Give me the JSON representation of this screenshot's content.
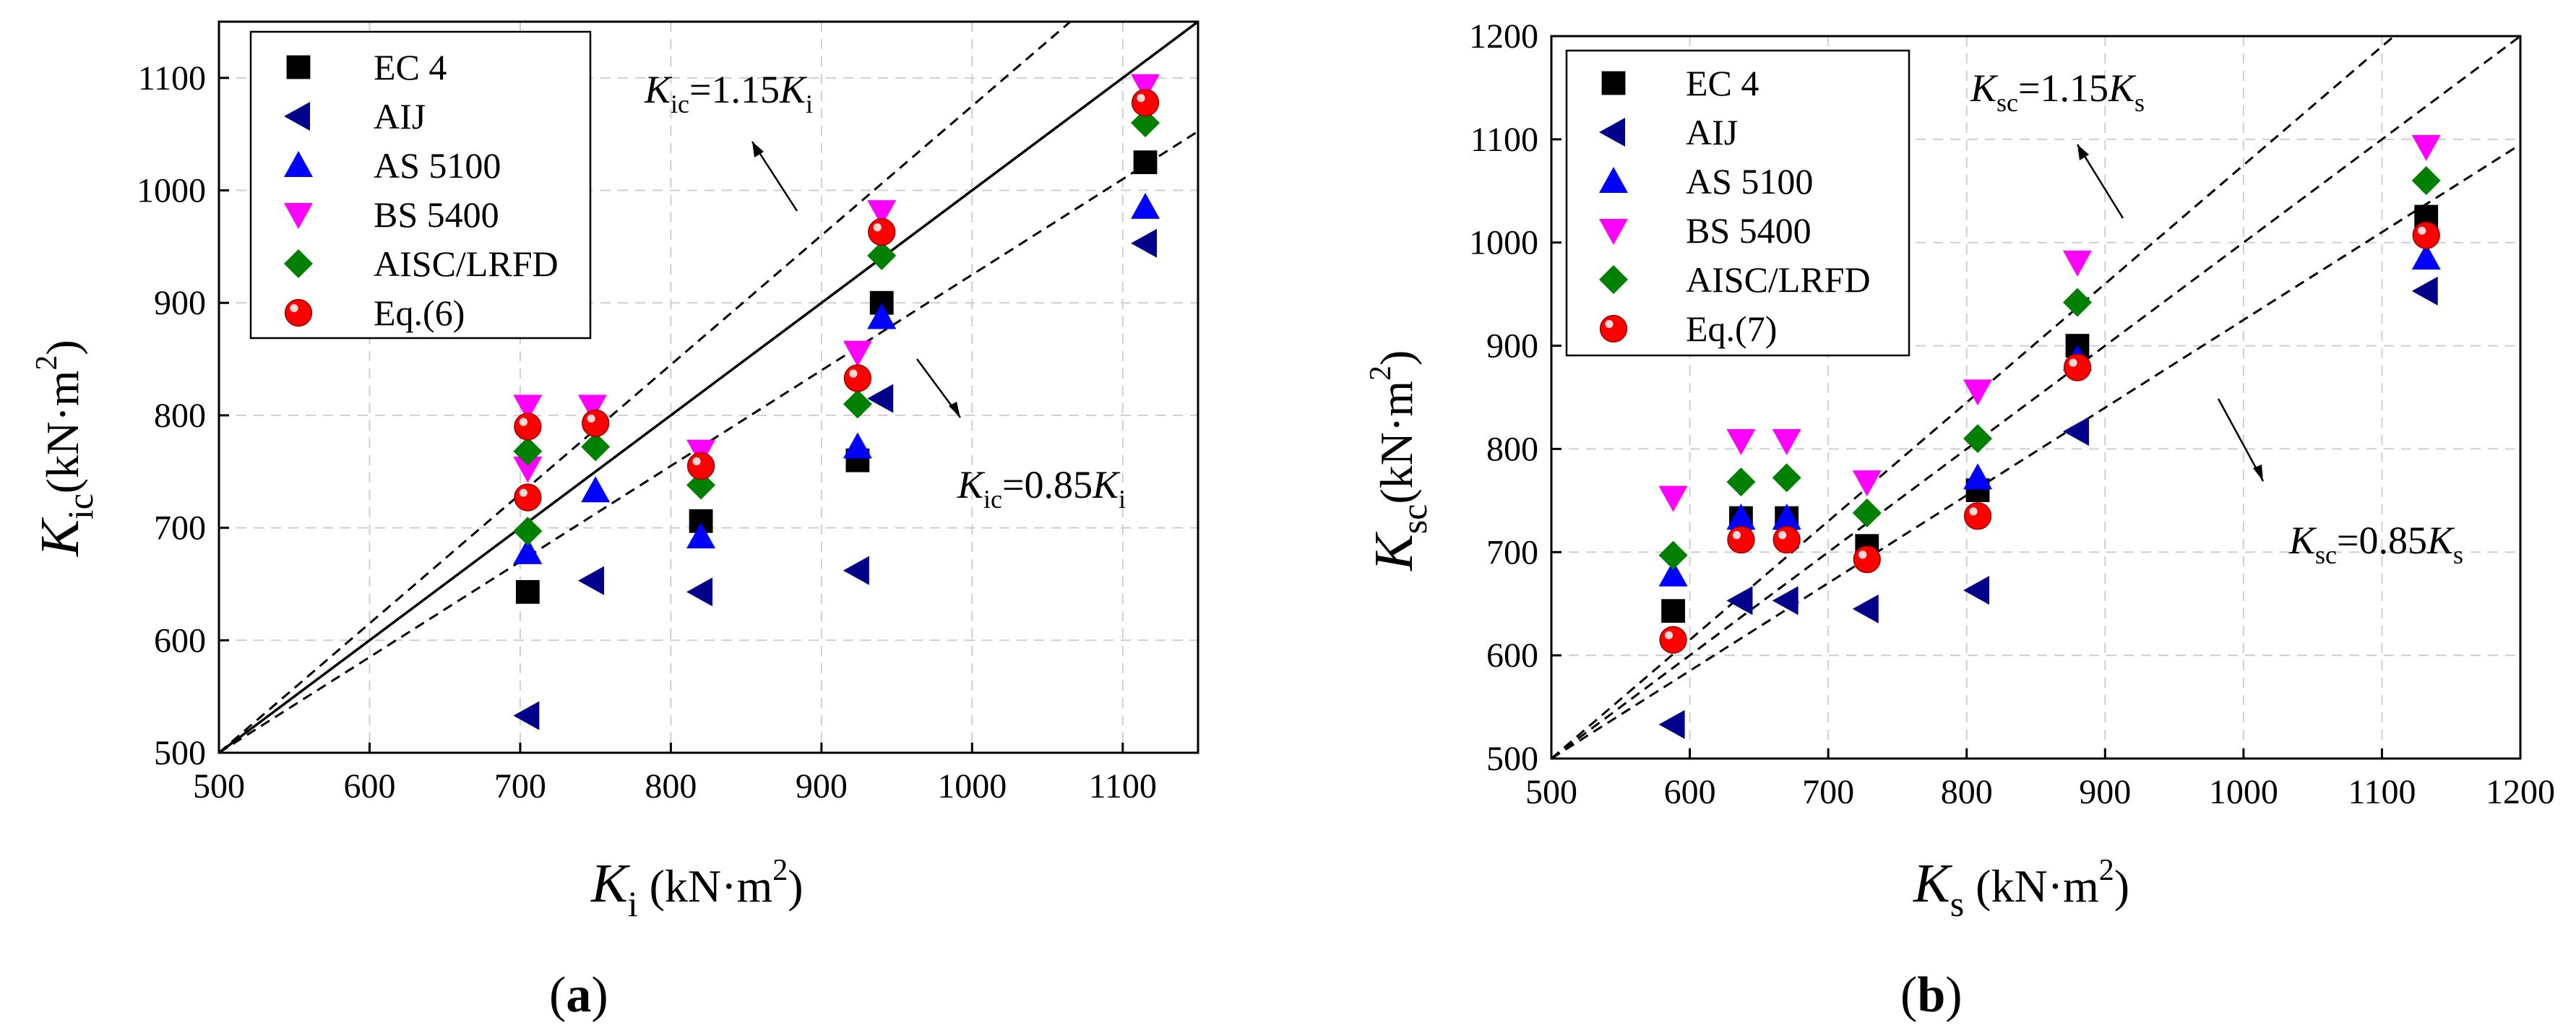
{
  "figure": {
    "panels": [
      {
        "label_parts": [
          "(",
          "a",
          ")"
        ]
      },
      {
        "label_parts": [
          "(",
          "b",
          ")"
        ]
      }
    ]
  },
  "chart_data": [
    {
      "type": "scatter",
      "panel": "a",
      "xlabel": {
        "main": "K",
        "sub": "i",
        "unit": " (kN·m",
        "sup": "2",
        "close": ")"
      },
      "ylabel": {
        "main": "K",
        "sub": "ic",
        "unit": "(kN·m",
        "sup": "2",
        "close": ")"
      },
      "xlim": [
        500,
        1150
      ],
      "ylim": [
        500,
        1150
      ],
      "xticks": [
        500,
        600,
        700,
        800,
        900,
        1000,
        1100
      ],
      "yticks": [
        500,
        600,
        700,
        800,
        900,
        1000,
        1100
      ],
      "grid": true,
      "legend_position": "top-left",
      "reference_lines": [
        {
          "name": "1:1",
          "slope": 1.0,
          "style": "solid"
        },
        {
          "name": "upper",
          "slope": 1.15,
          "style": "dashed"
        },
        {
          "name": "lower",
          "slope": 0.85,
          "style": "dashed"
        }
      ],
      "annotations": [
        {
          "main": "K",
          "sub": "ic",
          "rest": "=1.15",
          "main2": "K",
          "sub2": "i"
        },
        {
          "main": "K",
          "sub": "ic",
          "rest": "=0.85",
          "main2": "K",
          "sub2": "i"
        }
      ],
      "series": [
        {
          "name": "EC 4",
          "marker": "square",
          "color": "#000000",
          "x": [
            705,
            820,
            924,
            940,
            1115
          ],
          "y": [
            643,
            706,
            760,
            900,
            1025
          ]
        },
        {
          "name": "AIJ",
          "marker": "triangle-left",
          "color": "#00008B",
          "x": [
            705,
            748,
            820,
            924,
            940,
            1115
          ],
          "y": [
            533,
            653,
            643,
            662,
            815,
            953
          ]
        },
        {
          "name": "AS 5100",
          "marker": "triangle-up",
          "color": "#0000FF",
          "x": [
            705,
            750,
            820,
            924,
            940,
            1115
          ],
          "y": [
            678,
            733,
            692,
            772,
            887,
            985
          ]
        },
        {
          "name": "BS 5400",
          "marker": "triangle-down",
          "color": "#FF00FF",
          "x": [
            705,
            705,
            748,
            820,
            924,
            940,
            1115
          ],
          "y": [
            753,
            808,
            808,
            768,
            856,
            981,
            1093
          ]
        },
        {
          "name": "AISC/LRFD",
          "marker": "diamond",
          "color": "#008000",
          "x": [
            705,
            705,
            750,
            820,
            924,
            940,
            1115
          ],
          "y": [
            697,
            768,
            772,
            738,
            810,
            942,
            1060
          ]
        },
        {
          "name": "Eq.(6)",
          "marker": "circle",
          "color": "#FF0000",
          "x": [
            705,
            705,
            750,
            820,
            924,
            940,
            1115
          ],
          "y": [
            727,
            790,
            793,
            755,
            833,
            963,
            1078
          ]
        }
      ]
    },
    {
      "type": "scatter",
      "panel": "b",
      "xlabel": {
        "main": "K",
        "sub": "s",
        "unit": " (kN·m",
        "sup": "2",
        "close": ")"
      },
      "ylabel": {
        "main": "K",
        "sub": "sc",
        "unit": "(kN·m",
        "sup": "2",
        "close": ")"
      },
      "xlim": [
        500,
        1200
      ],
      "ylim": [
        500,
        1200
      ],
      "xticks": [
        500,
        600,
        700,
        800,
        900,
        1000,
        1100,
        1200
      ],
      "yticks": [
        500,
        600,
        700,
        800,
        900,
        1000,
        1100,
        1200
      ],
      "grid": true,
      "legend_position": "top-left",
      "reference_lines": [
        {
          "name": "1:1",
          "slope": 1.0,
          "style": "dashed"
        },
        {
          "name": "upper",
          "slope": 1.15,
          "style": "dashed"
        },
        {
          "name": "lower",
          "slope": 0.85,
          "style": "dashed"
        }
      ],
      "annotations": [
        {
          "main": "K",
          "sub": "sc",
          "rest": "=1.15",
          "main2": "K",
          "sub2": "s"
        },
        {
          "main": "K",
          "sub": "sc",
          "rest": "=0.85",
          "main2": "K",
          "sub2": "s"
        }
      ],
      "series": [
        {
          "name": "EC 4",
          "marker": "square",
          "color": "#000000",
          "x": [
            588,
            637,
            670,
            728,
            808,
            880,
            1132
          ],
          "y": [
            643,
            733,
            733,
            706,
            760,
            900,
            1025
          ]
        },
        {
          "name": "AIJ",
          "marker": "triangle-left",
          "color": "#00008B",
          "x": [
            588,
            637,
            670,
            728,
            808,
            880,
            1132
          ],
          "y": [
            533,
            653,
            653,
            645,
            663,
            817,
            953
          ]
        },
        {
          "name": "AS 5100",
          "marker": "triangle-up",
          "color": "#0000FF",
          "x": [
            588,
            637,
            670,
            808,
            880,
            1132
          ],
          "y": [
            678,
            733,
            733,
            772,
            887,
            985
          ]
        },
        {
          "name": "BS 5400",
          "marker": "triangle-down",
          "color": "#FF00FF",
          "x": [
            588,
            637,
            670,
            728,
            808,
            880,
            1132
          ],
          "y": [
            753,
            808,
            808,
            768,
            856,
            981,
            1093
          ]
        },
        {
          "name": "AISC/LRFD",
          "marker": "diamond",
          "color": "#008000",
          "x": [
            588,
            637,
            670,
            728,
            808,
            880,
            1132
          ],
          "y": [
            697,
            768,
            772,
            738,
            810,
            942,
            1060
          ]
        },
        {
          "name": "Eq.(7)",
          "marker": "circle",
          "color": "#FF0000",
          "x": [
            588,
            637,
            670,
            728,
            808,
            880,
            1132
          ],
          "y": [
            615,
            712,
            712,
            693,
            735,
            879,
            1007
          ]
        }
      ]
    }
  ]
}
